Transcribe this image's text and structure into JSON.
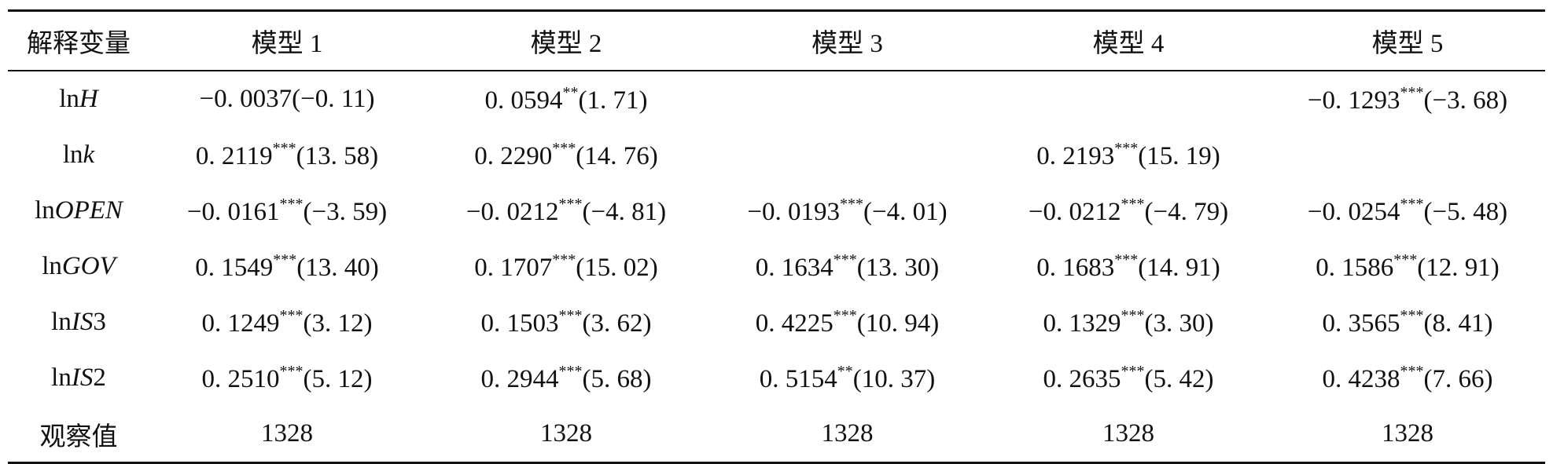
{
  "table": {
    "header": [
      "解释变量",
      "模型 1",
      "模型 2",
      "模型 3",
      "模型 4",
      "模型 5"
    ],
    "rows": [
      {
        "label": {
          "prefix": "ln",
          "var": "H"
        },
        "cells": [
          {
            "coef": "−0. 0037",
            "stars": null,
            "t": "(−0. 11)"
          },
          {
            "coef": "0. 0594",
            "stars": "**",
            "t": "(1. 71)"
          },
          null,
          null,
          {
            "coef": "−0. 1293",
            "stars": "***",
            "t": "(−3. 68)"
          }
        ]
      },
      {
        "label": {
          "prefix": "ln",
          "var": "k"
        },
        "cells": [
          {
            "coef": "0. 2119",
            "stars": "***",
            "t": "(13. 58)"
          },
          {
            "coef": "0. 2290",
            "stars": "***",
            "t": "(14. 76)"
          },
          null,
          {
            "coef": "0. 2193",
            "stars": "***",
            "t": "(15. 19)"
          },
          null
        ]
      },
      {
        "label": {
          "prefix": "ln",
          "var": "OPEN"
        },
        "cells": [
          {
            "coef": "−0. 0161",
            "stars": "***",
            "t": "(−3. 59)"
          },
          {
            "coef": "−0. 0212",
            "stars": "***",
            "t": "(−4. 81)"
          },
          {
            "coef": "−0. 0193",
            "stars": "***",
            "t": "(−4. 01)"
          },
          {
            "coef": "−0. 0212",
            "stars": "***",
            "t": "(−4. 79)"
          },
          {
            "coef": "−0. 0254",
            "stars": "***",
            "t": "(−5. 48)"
          }
        ]
      },
      {
        "label": {
          "prefix": "ln",
          "var": "GOV"
        },
        "cells": [
          {
            "coef": "0. 1549",
            "stars": "***",
            "t": "(13. 40)"
          },
          {
            "coef": "0. 1707",
            "stars": "***",
            "t": "(15. 02)"
          },
          {
            "coef": "0. 1634",
            "stars": "***",
            "t": "(13. 30)"
          },
          {
            "coef": "0. 1683",
            "stars": "***",
            "t": "(14. 91)"
          },
          {
            "coef": "0. 1586",
            "stars": "***",
            "t": "(12. 91)"
          }
        ]
      },
      {
        "label": {
          "prefix": "ln",
          "var": "IS",
          "suffix": "3"
        },
        "cells": [
          {
            "coef": "0. 1249",
            "stars": "***",
            "t": "(3. 12)"
          },
          {
            "coef": "0. 1503",
            "stars": "***",
            "t": "(3. 62)"
          },
          {
            "coef": "0. 4225",
            "stars": "***",
            "t": "(10. 94)"
          },
          {
            "coef": "0. 1329",
            "stars": "***",
            "t": "(3. 30)"
          },
          {
            "coef": "0. 3565",
            "stars": "***",
            "t": "(8. 41)"
          }
        ]
      },
      {
        "label": {
          "prefix": "ln",
          "var": "IS",
          "suffix": "2"
        },
        "cells": [
          {
            "coef": "0. 2510",
            "stars": "***",
            "t": "(5. 12)"
          },
          {
            "coef": "0. 2944",
            "stars": "***",
            "t": "(5. 68)"
          },
          {
            "coef": "0. 5154",
            "stars": "**",
            "t": "(10. 37)"
          },
          {
            "coef": "0. 2635",
            "stars": "***",
            "t": "(5. 42)"
          },
          {
            "coef": "0. 4238",
            "stars": "***",
            "t": "(7. 66)"
          }
        ]
      },
      {
        "label": {
          "text": "观察值"
        },
        "cells": [
          {
            "text": "1328"
          },
          {
            "text": "1328"
          },
          {
            "text": "1328"
          },
          {
            "text": "1328"
          },
          {
            "text": "1328"
          }
        ]
      }
    ]
  }
}
